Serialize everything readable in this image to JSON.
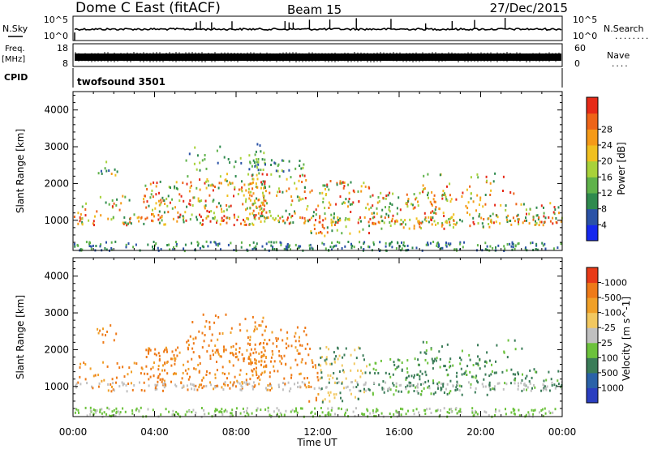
{
  "header": {
    "station": "Dome C East (fitACF)",
    "beam": "Beam 15",
    "date": "27/Dec/2015"
  },
  "sky_panel": {
    "left_label": "N.Sky",
    "right_label": "N.Search",
    "right_dots": "........",
    "left_ticks": [
      "10^5",
      "10^0"
    ],
    "right_ticks": [
      "10^5",
      "10^0"
    ]
  },
  "freq_panel": {
    "left_label_top": "Freq.",
    "left_label_unit": "[MHz]",
    "left_ticks": [
      "18",
      "8"
    ],
    "right_label": "Nave",
    "right_dots": "....",
    "right_ticks": [
      "60",
      "0"
    ]
  },
  "cpid_panel": {
    "label": "CPID",
    "value": "twofsound 3501"
  },
  "time_axis": {
    "label": "Time UT",
    "ticks": [
      "00:00",
      "04:00",
      "08:00",
      "12:00",
      "16:00",
      "20:00",
      "00:00"
    ],
    "range_hours": [
      0,
      24
    ]
  },
  "chart_data": [
    {
      "type": "heatmap",
      "title": "",
      "xlabel": "Time UT",
      "ylabel": "Slant Range [km]",
      "xlim": [
        0,
        24
      ],
      "ylim": [
        180,
        4500
      ],
      "y_ticks": [
        "1000",
        "2000",
        "3000",
        "4000"
      ],
      "colorbar": {
        "label": "Power [dB]",
        "ticks": [
          "4",
          "8",
          "12",
          "16",
          "20",
          "24",
          "28"
        ],
        "range": [
          0,
          30
        ],
        "colors": [
          "#1528ee",
          "#2a52a6",
          "#2f8a4e",
          "#5fb24a",
          "#a8d23a",
          "#f0c020",
          "#f59a18",
          "#ee6418",
          "#e62a18"
        ]
      }
    },
    {
      "type": "heatmap",
      "title": "",
      "xlabel": "Time UT",
      "ylabel": "Slant Range [km]",
      "xlim": [
        0,
        24
      ],
      "ylim": [
        180,
        4500
      ],
      "y_ticks": [
        "1000",
        "2000",
        "3000",
        "4000"
      ],
      "colorbar": {
        "label": "Velocity [m s^-1]",
        "ticks": [
          "1000",
          "500",
          "100",
          "25",
          "-25",
          "-100",
          "-500",
          "-1000"
        ],
        "range": [
          -1000,
          1000
        ],
        "colors": [
          "#2a3ec0",
          "#2a62a8",
          "#3a7c58",
          "#6cc23c",
          "#c0c0c0",
          "#f2c860",
          "#f0a028",
          "#ee7a18",
          "#e83a18"
        ]
      }
    }
  ]
}
